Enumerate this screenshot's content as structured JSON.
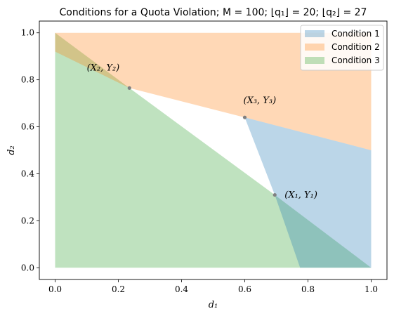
{
  "chart_data": {
    "type": "area",
    "title": "Conditions for a Quota Violation; M = 100; ⌊q₁⌋ = 20; ⌊q₂⌋ = 27",
    "xlabel": "d₁",
    "ylabel": "d₂",
    "xlim": [
      -0.05,
      1.05
    ],
    "ylim": [
      -0.05,
      1.05
    ],
    "x_ticks": [
      "0.0",
      "0.2",
      "0.4",
      "0.6",
      "0.8",
      "1.0"
    ],
    "y_ticks": [
      "0.0",
      "0.2",
      "0.4",
      "0.6",
      "0.8",
      "1.0"
    ],
    "legend_position": "top-right",
    "grid": false,
    "series": [
      {
        "name": "Condition 1",
        "color": "#1f77b4",
        "polygon": [
          [
            0.6,
            0.64
          ],
          [
            0.695,
            0.31
          ],
          [
            1.0,
            0.0
          ],
          [
            1.0,
            0.5
          ]
        ]
      },
      {
        "name": "Condition 2",
        "color": "#ff7f0e",
        "polygon": [
          [
            0.0,
            1.0
          ],
          [
            1.0,
            1.0
          ],
          [
            1.0,
            0.5
          ],
          [
            0.6,
            0.64
          ],
          [
            0.235,
            0.765
          ],
          [
            0.0,
            0.92
          ]
        ]
      },
      {
        "name": "Condition 3",
        "color": "#2ca02c",
        "polygon": [
          [
            0.0,
            0.0
          ],
          [
            0.0,
            1.0
          ],
          [
            0.235,
            0.765
          ],
          [
            0.695,
            0.31
          ],
          [
            1.0,
            0.0
          ]
        ]
      }
    ],
    "extra_regions": [
      {
        "color": "#1f77b4",
        "polygon": [
          [
            0.775,
            0.0
          ],
          [
            0.695,
            0.31
          ],
          [
            1.0,
            0.0
          ]
        ]
      }
    ],
    "points": [
      {
        "label": "(X₁, Y₁)",
        "x": 0.695,
        "y": 0.31,
        "label_side": "right"
      },
      {
        "label": "(X₂, Y₂)",
        "x": 0.235,
        "y": 0.765,
        "label_side": "upper-left"
      },
      {
        "label": "(X₃, Y₃)",
        "x": 0.6,
        "y": 0.64,
        "label_side": "upper-right"
      }
    ]
  }
}
